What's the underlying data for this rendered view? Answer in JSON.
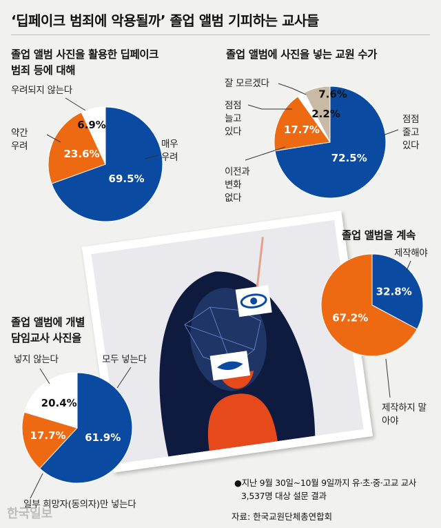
{
  "title": "‘딥페이크 범죄에 악용될까’ 졸업 앨범 기피하는 교사들",
  "footnote": {
    "line1": "●지난 9월 30일~10월 9일까지 유·초·중·고교 교사",
    "line2": "3,537명 대상 설문 결과",
    "source": "자료: 한국교원단체총연합회"
  },
  "logo_text": "한국일보",
  "colors": {
    "blue": "#0a4aa0",
    "orange": "#ee6a12",
    "white": "#ffffff",
    "gray": "#c9baa6"
  },
  "chart_data": [
    {
      "type": "pie",
      "title_line1": "졸업 앨범 사진을 활용한 딥페이크",
      "title_line2": "범죄 등에 대해",
      "slices": [
        {
          "label": "매우 우려",
          "value": 69.5,
          "value_label": "69.5%",
          "color": "#0a4aa0"
        },
        {
          "label": "약간 우려",
          "value": 23.6,
          "value_label": "23.6%",
          "color": "#ee6a12"
        },
        {
          "label": "우려되지 않는다",
          "value": 6.9,
          "value_label": "6.9%",
          "color": "#ffffff"
        }
      ]
    },
    {
      "type": "pie",
      "title_line1": "졸업 앨범에 사진을 넣는 교원 수가",
      "slices": [
        {
          "label": "점점 줄고 있다",
          "value": 72.5,
          "value_label": "72.5%",
          "color": "#0a4aa0"
        },
        {
          "label": "이전과 변화 없다",
          "value": 17.7,
          "value_label": "17.7%",
          "color": "#ee6a12"
        },
        {
          "label": "점점 늘고 있다",
          "value": 2.2,
          "value_label": "2.2%",
          "color": "#ffffff"
        },
        {
          "label": "잘 모르겠다",
          "value": 7.6,
          "value_label": "7.6%",
          "color": "#c9baa6"
        }
      ]
    },
    {
      "type": "pie",
      "title_line1": "졸업 앨범을 계속",
      "slices": [
        {
          "label": "제작해야",
          "value": 32.8,
          "value_label": "32.8%",
          "color": "#0a4aa0"
        },
        {
          "label": "제작하지 말아야",
          "value": 67.2,
          "value_label": "67.2%",
          "color": "#ee6a12"
        }
      ]
    },
    {
      "type": "pie",
      "title_line1": "졸업 앨범에 개별",
      "title_line2": "담임교사 사진을",
      "slices": [
        {
          "label": "모두 넣는다",
          "value": 61.9,
          "value_label": "61.9%",
          "color": "#0a4aa0"
        },
        {
          "label": "일부 희망자(동의자)만 넣는다",
          "value": 17.7,
          "value_label": "17.7%",
          "color": "#ee6a12"
        },
        {
          "label": "넣지 않는다",
          "value": 20.4,
          "value_label": "20.4%",
          "color": "#ffffff"
        }
      ]
    }
  ]
}
